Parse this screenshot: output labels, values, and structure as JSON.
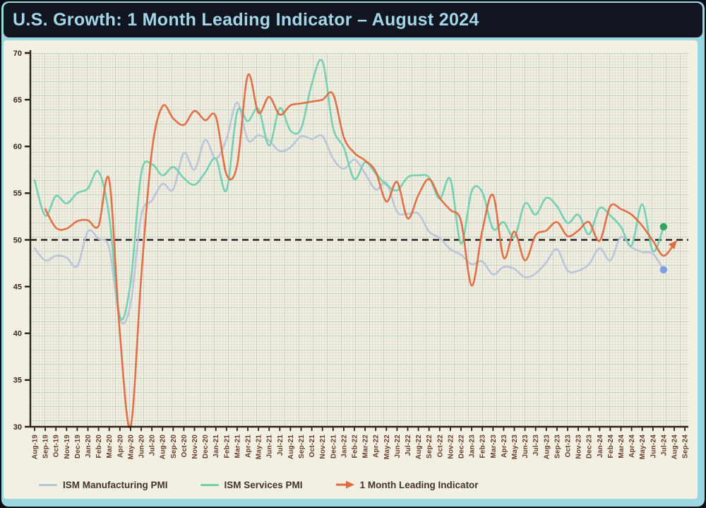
{
  "title": "U.S. Growth: 1 Month Leading Indicator – August 2024",
  "colors": {
    "page_edge": "#0a0e15",
    "frame_teal": "#9bd6e1",
    "title_bg": "#11151f",
    "title_text": "#a3d6e8",
    "panel_bg": "#f2f0e3",
    "grid_minor": "#e2e1d3",
    "grid_major": "#c8d2c4",
    "axis": "#2e2115",
    "y_label": "#3b2b1d",
    "x_label": "#6b3c2a",
    "reference_dash": "#262626",
    "mfg_line": "#b6c3d8",
    "services_line": "#6fcfb1",
    "leading_line": "#e0693f",
    "mfg_dot": "#7e9de2",
    "services_dot": "#2fa763",
    "legend_text": "#45322a"
  },
  "chart_data": {
    "type": "line",
    "title": "U.S. Growth: 1 Month Leading Indicator – August 2024",
    "xlabel": "",
    "ylabel": "",
    "ylim": [
      30,
      70
    ],
    "yticks": [
      30,
      35,
      40,
      45,
      50,
      55,
      60,
      65,
      70
    ],
    "reference_line": 50,
    "grid": true,
    "legend_position": "bottom",
    "categories": [
      "Aug-19",
      "Sep-19",
      "Oct-19",
      "Nov-19",
      "Dec-19",
      "Jan-20",
      "Feb-20",
      "Mar-20",
      "Apr-20",
      "May-20",
      "Jun-20",
      "Jul-20",
      "Aug-20",
      "Sep-20",
      "Oct-20",
      "Nov-20",
      "Dec-20",
      "Jan-21",
      "Feb-21",
      "Mar-21",
      "Apr-21",
      "May-21",
      "Jun-21",
      "Jul-21",
      "Aug-21",
      "Sep-21",
      "Oct-21",
      "Nov-21",
      "Dec-21",
      "Jan-22",
      "Feb-22",
      "Mar-22",
      "Apr-22",
      "May-22",
      "Jun-22",
      "Jul-22",
      "Aug-22",
      "Sep-22",
      "Oct-22",
      "Nov-22",
      "Dec-22",
      "Jan-23",
      "Feb-23",
      "Mar-23",
      "Apr-23",
      "May-23",
      "Jun-23",
      "Jul-23",
      "Aug-23",
      "Sep-23",
      "Oct-23",
      "Nov-23",
      "Dec-23",
      "Jan-24",
      "Feb-24",
      "Mar-24",
      "Apr-24",
      "May-24",
      "Jun-24",
      "Jul-24",
      "Aug-24",
      "Sep-24"
    ],
    "series": [
      {
        "name": "ISM Manufacturing PMI",
        "color": "#b6c3d8",
        "start_index": 0,
        "end_marker": "dot",
        "end_marker_color": "#7e9de2",
        "values": [
          49.1,
          47.8,
          48.3,
          48.1,
          47.2,
          50.9,
          50.1,
          49.1,
          41.5,
          43.1,
          52.6,
          54.2,
          56.0,
          55.4,
          59.3,
          57.5,
          60.7,
          58.7,
          60.8,
          64.7,
          60.7,
          61.2,
          60.6,
          59.5,
          59.9,
          61.1,
          60.8,
          61.1,
          58.7,
          57.6,
          58.6,
          57.1,
          55.4,
          56.1,
          53.0,
          52.8,
          52.8,
          50.9,
          50.2,
          49.0,
          48.4,
          47.4,
          47.7,
          46.3,
          47.1,
          46.9,
          46.0,
          46.4,
          47.6,
          49.0,
          46.7,
          46.7,
          47.4,
          49.1,
          47.8,
          50.3,
          49.2,
          48.7,
          48.5,
          46.8
        ]
      },
      {
        "name": "ISM Services PMI",
        "color": "#6fcfb1",
        "start_index": 0,
        "end_marker": "dot",
        "end_marker_color": "#2fa763",
        "values": [
          56.4,
          52.6,
          54.7,
          53.9,
          55.0,
          55.5,
          57.3,
          52.5,
          41.8,
          45.4,
          57.1,
          58.1,
          56.9,
          57.8,
          56.6,
          55.9,
          57.2,
          58.7,
          55.3,
          63.7,
          62.7,
          64.0,
          60.1,
          64.1,
          61.7,
          61.9,
          66.7,
          69.1,
          62.0,
          59.9,
          56.5,
          58.3,
          57.1,
          55.9,
          55.3,
          56.7,
          56.9,
          56.7,
          54.4,
          56.5,
          49.6,
          55.2,
          55.1,
          51.2,
          51.9,
          50.3,
          53.9,
          52.7,
          54.5,
          53.6,
          51.8,
          52.7,
          50.6,
          53.4,
          52.6,
          51.4,
          49.4,
          53.8,
          48.8,
          51.4
        ]
      },
      {
        "name": "1 Month Leading Indicator",
        "color": "#e0693f",
        "start_index": 1,
        "end_marker": "arrow",
        "end_marker_color": "#e0693f",
        "values": [
          53.3,
          51.3,
          51.2,
          52.0,
          52.1,
          51.5,
          56.4,
          40.0,
          30.0,
          46.0,
          59.5,
          64.3,
          63.0,
          62.3,
          63.8,
          62.8,
          63.2,
          57.0,
          58.0,
          67.6,
          63.6,
          65.3,
          63.4,
          64.4,
          64.6,
          64.8,
          65.0,
          65.6,
          61.0,
          59.3,
          58.5,
          57.3,
          54.1,
          56.2,
          52.3,
          54.8,
          56.5,
          54.5,
          53.2,
          52.0,
          45.1,
          51.0,
          54.8,
          48.1,
          50.9,
          47.8,
          50.5,
          51.0,
          51.9,
          50.4,
          51.0,
          51.9,
          49.9,
          53.6,
          53.3,
          52.7,
          51.5,
          49.9,
          48.3,
          49.6
        ]
      }
    ]
  },
  "legend": {
    "items": [
      {
        "label": "ISM Manufacturing PMI",
        "swatch": "line"
      },
      {
        "label": "ISM Services PMI",
        "swatch": "line"
      },
      {
        "label": "1 Month Leading Indicator",
        "swatch": "arrow"
      }
    ]
  }
}
